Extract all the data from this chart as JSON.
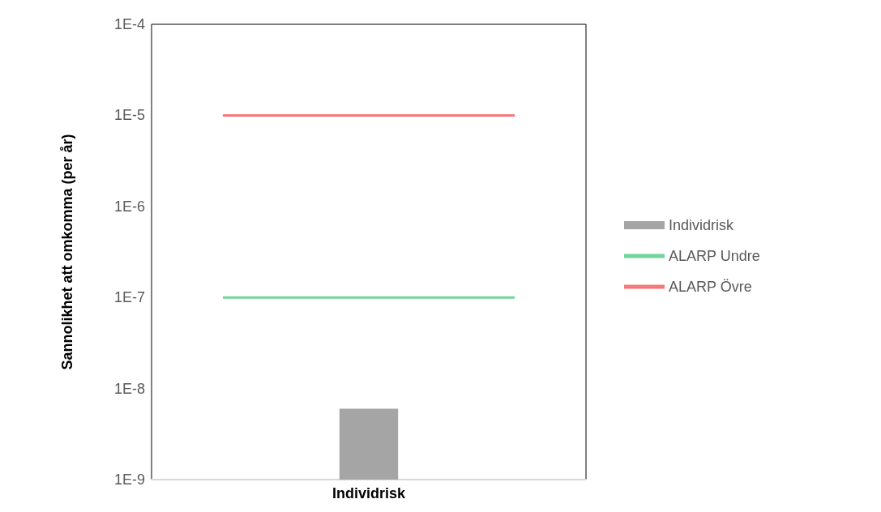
{
  "chart_data": {
    "type": "bar",
    "ylabel": "Sannolikhet att omkomma (per år)",
    "categories": [
      "Individrisk"
    ],
    "series": [
      {
        "name": "Individrisk",
        "color": "#a5a5a5",
        "values": [
          6e-09
        ]
      }
    ],
    "ref_lines": [
      {
        "axis": "y",
        "value": 1e-07,
        "label": "ALARP Undre",
        "color": "#6fd39a"
      },
      {
        "axis": "y",
        "value": 1e-05,
        "label": "ALARP Övre",
        "color": "#f47a7a"
      }
    ],
    "log": "y",
    "ylim": [
      1e-09,
      0.0001
    ],
    "yticks": [
      {
        "value": 1e-09,
        "label": "1E-9"
      },
      {
        "value": 1e-08,
        "label": "1E-8"
      },
      {
        "value": 1e-07,
        "label": "1E-7"
      },
      {
        "value": 1e-06,
        "label": "1E-6"
      },
      {
        "value": 1e-05,
        "label": "1E-5"
      },
      {
        "value": 0.0001,
        "label": "1E-4"
      }
    ],
    "legend": "right",
    "grid": false
  }
}
